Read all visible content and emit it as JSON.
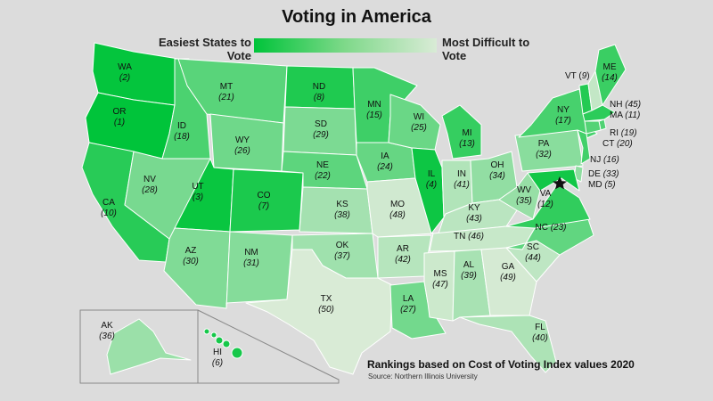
{
  "title": "Voting in America",
  "legend": {
    "easiest_label": "Easiest States to Vote",
    "hardest_label": "Most Difficult to Vote",
    "easiest_color": "#00c43a",
    "hardest_color": "#d9ebd6"
  },
  "states": {
    "WA": {
      "rank": "(2)"
    },
    "OR": {
      "rank": "(1)"
    },
    "CA": {
      "rank": "(10)"
    },
    "ID": {
      "rank": "(18)"
    },
    "NV": {
      "rank": "(28)"
    },
    "MT": {
      "rank": "(21)"
    },
    "WY": {
      "rank": "(26)"
    },
    "UT": {
      "rank": "(3)"
    },
    "CO": {
      "rank": "(7)"
    },
    "AZ": {
      "rank": "(30)"
    },
    "NM": {
      "rank": "(31)"
    },
    "ND": {
      "rank": "(8)"
    },
    "SD": {
      "rank": "(29)"
    },
    "NE": {
      "rank": "(22)"
    },
    "KS": {
      "rank": "(38)"
    },
    "OK": {
      "rank": "(37)"
    },
    "TX": {
      "rank": "(50)"
    },
    "MN": {
      "rank": "(15)"
    },
    "IA": {
      "rank": "(24)"
    },
    "MO": {
      "rank": "(48)"
    },
    "AR": {
      "rank": "(42)"
    },
    "LA": {
      "rank": "(27)"
    },
    "WI": {
      "rank": "(25)"
    },
    "IL": {
      "rank": "(4)"
    },
    "MS": {
      "rank": "(47)"
    },
    "MI": {
      "rank": "(13)"
    },
    "IN": {
      "rank": "(41)"
    },
    "KY": {
      "rank": "(43)"
    },
    "TN": {
      "rank": "(46)"
    },
    "AL": {
      "rank": "(39)"
    },
    "GA": {
      "rank": "(49)"
    },
    "FL": {
      "rank": "(40)"
    },
    "SC": {
      "rank": "(44)"
    },
    "NC": {
      "rank": "(23)"
    },
    "VA": {
      "rank": "(12)"
    },
    "WV": {
      "rank": "(35)"
    },
    "OH": {
      "rank": "(34)"
    },
    "PA": {
      "rank": "(32)"
    },
    "NY": {
      "rank": "(17)"
    },
    "VT": {
      "rank": "(9)"
    },
    "ME": {
      "rank": "(14)"
    },
    "NH": {
      "rank": "(45)"
    },
    "MA": {
      "rank": "(11)"
    },
    "RI": {
      "rank": "(19)"
    },
    "CT": {
      "rank": "(20)"
    },
    "NJ": {
      "rank": "(16)"
    },
    "DE": {
      "rank": "(33)"
    },
    "MD": {
      "rank": "(5)"
    },
    "AK": {
      "rank": "(36)"
    },
    "HI": {
      "rank": "(6)"
    }
  },
  "footer": "Rankings based on Cost of Voting Index values 2020",
  "source": "Source: Northern Illinois University",
  "icons": {
    "capital": "star-icon"
  }
}
